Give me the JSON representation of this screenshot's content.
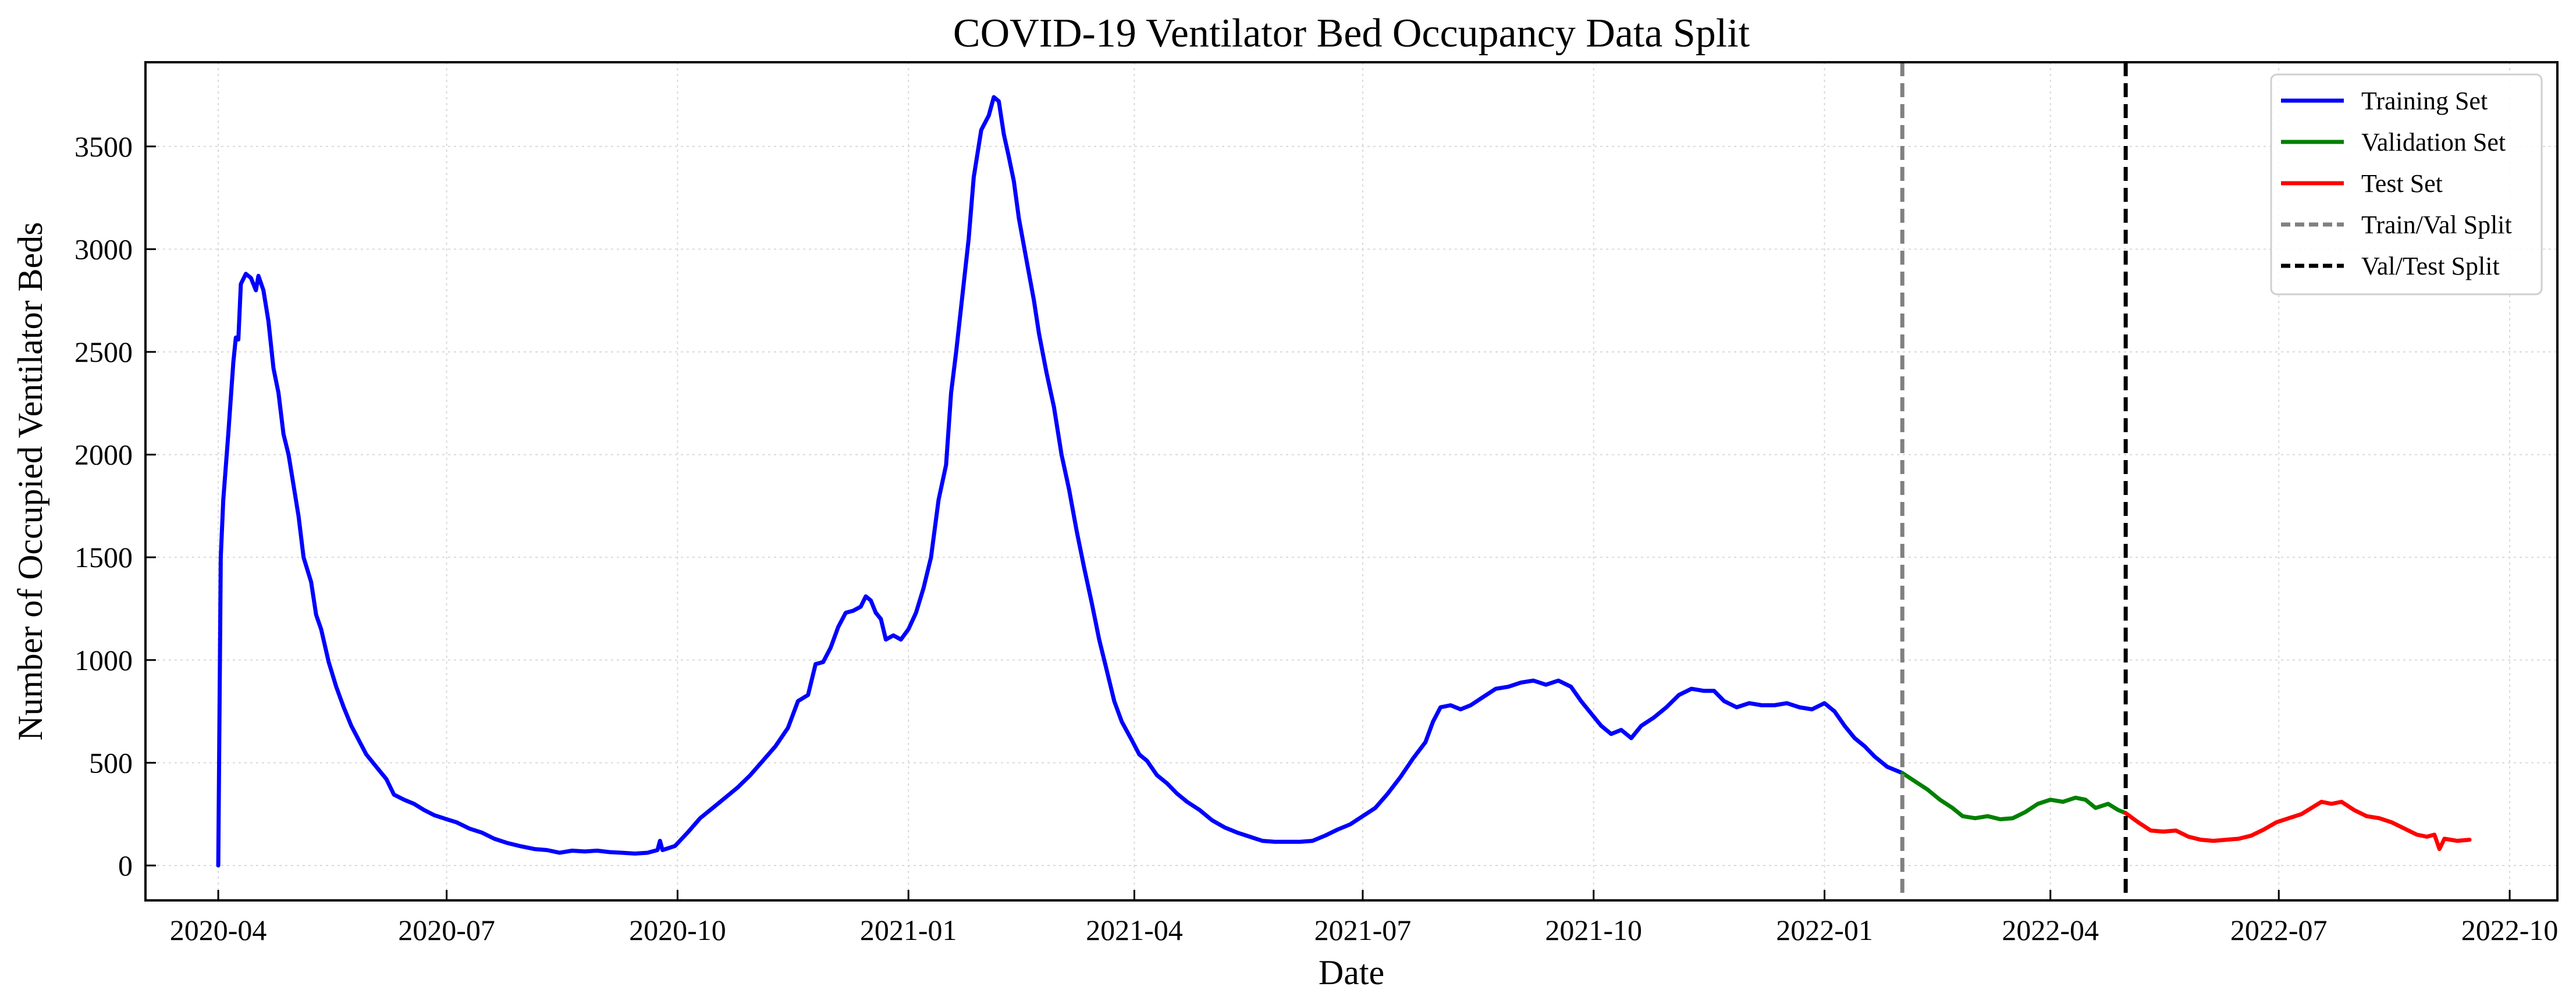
{
  "chart_data": {
    "type": "line",
    "title": "COVID-19 Ventilator Bed Occupancy Data Split",
    "xlabel": "Date",
    "ylabel": "Number of Occupied Ventilator Beds",
    "x_range": [
      "2020-03-03",
      "2022-10-20"
    ],
    "ylim": [
      -170,
      3910
    ],
    "x_ticks": [
      "2020-04",
      "2020-07",
      "2020-10",
      "2021-01",
      "2021-04",
      "2021-07",
      "2021-10",
      "2022-01",
      "2022-04",
      "2022-07",
      "2022-10"
    ],
    "y_ticks": [
      0,
      500,
      1000,
      1500,
      2000,
      2500,
      3000,
      3500
    ],
    "grid": true,
    "legend_position": "top-right",
    "series": [
      {
        "name": "Training Set",
        "color": "#0000ff",
        "points": [
          [
            "2020-04-01",
            0
          ],
          [
            "2020-04-02",
            1500
          ],
          [
            "2020-04-03",
            1780
          ],
          [
            "2020-04-05",
            2100
          ],
          [
            "2020-04-07",
            2450
          ],
          [
            "2020-04-08",
            2570
          ],
          [
            "2020-04-09",
            2560
          ],
          [
            "2020-04-10",
            2830
          ],
          [
            "2020-04-12",
            2880
          ],
          [
            "2020-04-14",
            2860
          ],
          [
            "2020-04-16",
            2800
          ],
          [
            "2020-04-17",
            2870
          ],
          [
            "2020-04-19",
            2800
          ],
          [
            "2020-04-21",
            2650
          ],
          [
            "2020-04-23",
            2420
          ],
          [
            "2020-04-25",
            2300
          ],
          [
            "2020-04-27",
            2100
          ],
          [
            "2020-04-29",
            2000
          ],
          [
            "2020-05-01",
            1850
          ],
          [
            "2020-05-03",
            1700
          ],
          [
            "2020-05-05",
            1500
          ],
          [
            "2020-05-08",
            1380
          ],
          [
            "2020-05-10",
            1220
          ],
          [
            "2020-05-12",
            1150
          ],
          [
            "2020-05-15",
            990
          ],
          [
            "2020-05-18",
            870
          ],
          [
            "2020-05-21",
            770
          ],
          [
            "2020-05-24",
            680
          ],
          [
            "2020-05-27",
            610
          ],
          [
            "2020-05-30",
            540
          ],
          [
            "2020-06-03",
            480
          ],
          [
            "2020-06-07",
            420
          ],
          [
            "2020-06-10",
            345
          ],
          [
            "2020-06-14",
            320
          ],
          [
            "2020-06-18",
            300
          ],
          [
            "2020-06-22",
            270
          ],
          [
            "2020-06-26",
            245
          ],
          [
            "2020-07-01",
            225
          ],
          [
            "2020-07-05",
            210
          ],
          [
            "2020-07-10",
            180
          ],
          [
            "2020-07-15",
            160
          ],
          [
            "2020-07-20",
            130
          ],
          [
            "2020-07-25",
            110
          ],
          [
            "2020-07-30",
            95
          ],
          [
            "2020-08-05",
            80
          ],
          [
            "2020-08-10",
            75
          ],
          [
            "2020-08-15",
            62
          ],
          [
            "2020-08-20",
            72
          ],
          [
            "2020-08-25",
            68
          ],
          [
            "2020-08-30",
            72
          ],
          [
            "2020-09-04",
            65
          ],
          [
            "2020-09-09",
            62
          ],
          [
            "2020-09-14",
            58
          ],
          [
            "2020-09-19",
            62
          ],
          [
            "2020-09-23",
            75
          ],
          [
            "2020-09-24",
            120
          ],
          [
            "2020-09-25",
            75
          ],
          [
            "2020-09-30",
            95
          ],
          [
            "2020-10-05",
            160
          ],
          [
            "2020-10-10",
            230
          ],
          [
            "2020-10-15",
            280
          ],
          [
            "2020-10-20",
            330
          ],
          [
            "2020-10-25",
            380
          ],
          [
            "2020-10-30",
            440
          ],
          [
            "2020-11-04",
            510
          ],
          [
            "2020-11-09",
            580
          ],
          [
            "2020-11-14",
            670
          ],
          [
            "2020-11-18",
            800
          ],
          [
            "2020-11-22",
            830
          ],
          [
            "2020-11-25",
            980
          ],
          [
            "2020-11-28",
            990
          ],
          [
            "2020-12-01",
            1060
          ],
          [
            "2020-12-04",
            1160
          ],
          [
            "2020-12-07",
            1230
          ],
          [
            "2020-12-10",
            1240
          ],
          [
            "2020-12-13",
            1260
          ],
          [
            "2020-12-15",
            1310
          ],
          [
            "2020-12-17",
            1290
          ],
          [
            "2020-12-19",
            1230
          ],
          [
            "2020-12-21",
            1200
          ],
          [
            "2020-12-23",
            1100
          ],
          [
            "2020-12-26",
            1120
          ],
          [
            "2020-12-29",
            1100
          ],
          [
            "2021-01-01",
            1150
          ],
          [
            "2021-01-04",
            1230
          ],
          [
            "2021-01-07",
            1350
          ],
          [
            "2021-01-10",
            1500
          ],
          [
            "2021-01-13",
            1780
          ],
          [
            "2021-01-16",
            1950
          ],
          [
            "2021-01-18",
            2300
          ],
          [
            "2021-01-20",
            2500
          ],
          [
            "2021-01-23",
            2830
          ],
          [
            "2021-01-25",
            3050
          ],
          [
            "2021-01-27",
            3350
          ],
          [
            "2021-01-30",
            3580
          ],
          [
            "2021-02-02",
            3650
          ],
          [
            "2021-02-04",
            3740
          ],
          [
            "2021-02-06",
            3720
          ],
          [
            "2021-02-08",
            3560
          ],
          [
            "2021-02-10",
            3450
          ],
          [
            "2021-02-12",
            3330
          ],
          [
            "2021-02-14",
            3150
          ],
          [
            "2021-02-17",
            2950
          ],
          [
            "2021-02-20",
            2750
          ],
          [
            "2021-02-22",
            2590
          ],
          [
            "2021-02-25",
            2400
          ],
          [
            "2021-02-28",
            2230
          ],
          [
            "2021-03-03",
            2000
          ],
          [
            "2021-03-06",
            1830
          ],
          [
            "2021-03-09",
            1630
          ],
          [
            "2021-03-12",
            1450
          ],
          [
            "2021-03-15",
            1280
          ],
          [
            "2021-03-18",
            1100
          ],
          [
            "2021-03-21",
            950
          ],
          [
            "2021-03-24",
            800
          ],
          [
            "2021-03-27",
            700
          ],
          [
            "2021-03-31",
            610
          ],
          [
            "2021-04-03",
            540
          ],
          [
            "2021-04-06",
            510
          ],
          [
            "2021-04-10",
            440
          ],
          [
            "2021-04-14",
            400
          ],
          [
            "2021-04-18",
            350
          ],
          [
            "2021-04-22",
            310
          ],
          [
            "2021-04-27",
            270
          ],
          [
            "2021-05-02",
            220
          ],
          [
            "2021-05-07",
            185
          ],
          [
            "2021-05-12",
            160
          ],
          [
            "2021-05-17",
            140
          ],
          [
            "2021-05-22",
            120
          ],
          [
            "2021-05-27",
            115
          ],
          [
            "2021-06-01",
            115
          ],
          [
            "2021-06-06",
            115
          ],
          [
            "2021-06-11",
            120
          ],
          [
            "2021-06-16",
            145
          ],
          [
            "2021-06-21",
            175
          ],
          [
            "2021-06-26",
            200
          ],
          [
            "2021-07-01",
            240
          ],
          [
            "2021-07-06",
            280
          ],
          [
            "2021-07-11",
            350
          ],
          [
            "2021-07-16",
            430
          ],
          [
            "2021-07-21",
            520
          ],
          [
            "2021-07-26",
            600
          ],
          [
            "2021-07-29",
            700
          ],
          [
            "2021-08-01",
            770
          ],
          [
            "2021-08-05",
            780
          ],
          [
            "2021-08-09",
            760
          ],
          [
            "2021-08-13",
            780
          ],
          [
            "2021-08-18",
            820
          ],
          [
            "2021-08-23",
            860
          ],
          [
            "2021-08-28",
            870
          ],
          [
            "2021-09-02",
            890
          ],
          [
            "2021-09-07",
            900
          ],
          [
            "2021-09-12",
            880
          ],
          [
            "2021-09-17",
            900
          ],
          [
            "2021-09-22",
            870
          ],
          [
            "2021-09-26",
            800
          ],
          [
            "2021-09-30",
            740
          ],
          [
            "2021-10-04",
            680
          ],
          [
            "2021-10-08",
            640
          ],
          [
            "2021-10-12",
            660
          ],
          [
            "2021-10-16",
            620
          ],
          [
            "2021-10-20",
            680
          ],
          [
            "2021-10-25",
            720
          ],
          [
            "2021-10-30",
            770
          ],
          [
            "2021-11-04",
            830
          ],
          [
            "2021-11-09",
            860
          ],
          [
            "2021-11-14",
            850
          ],
          [
            "2021-11-18",
            850
          ],
          [
            "2021-11-22",
            800
          ],
          [
            "2021-11-27",
            770
          ],
          [
            "2021-12-02",
            790
          ],
          [
            "2021-12-07",
            780
          ],
          [
            "2021-12-12",
            780
          ],
          [
            "2021-12-17",
            790
          ],
          [
            "2021-12-22",
            770
          ],
          [
            "2021-12-27",
            760
          ],
          [
            "2022-01-01",
            790
          ],
          [
            "2022-01-05",
            750
          ],
          [
            "2022-01-09",
            680
          ],
          [
            "2022-01-13",
            620
          ],
          [
            "2022-01-17",
            580
          ],
          [
            "2022-01-21",
            530
          ],
          [
            "2022-01-26",
            480
          ],
          [
            "2022-02-01",
            450
          ]
        ]
      },
      {
        "name": "Validation Set",
        "color": "#008000",
        "points": [
          [
            "2022-02-01",
            450
          ],
          [
            "2022-02-06",
            410
          ],
          [
            "2022-02-11",
            370
          ],
          [
            "2022-02-16",
            320
          ],
          [
            "2022-02-21",
            280
          ],
          [
            "2022-02-25",
            240
          ],
          [
            "2022-03-02",
            230
          ],
          [
            "2022-03-07",
            240
          ],
          [
            "2022-03-12",
            225
          ],
          [
            "2022-03-17",
            230
          ],
          [
            "2022-03-22",
            260
          ],
          [
            "2022-03-27",
            300
          ],
          [
            "2022-04-01",
            320
          ],
          [
            "2022-04-06",
            310
          ],
          [
            "2022-04-11",
            330
          ],
          [
            "2022-04-15",
            320
          ],
          [
            "2022-04-19",
            280
          ],
          [
            "2022-04-24",
            300
          ],
          [
            "2022-04-28",
            270
          ],
          [
            "2022-05-01",
            255
          ]
        ]
      },
      {
        "name": "Test Set",
        "color": "#ff0000",
        "points": [
          [
            "2022-05-01",
            255
          ],
          [
            "2022-05-06",
            210
          ],
          [
            "2022-05-11",
            170
          ],
          [
            "2022-05-16",
            165
          ],
          [
            "2022-05-21",
            170
          ],
          [
            "2022-05-26",
            140
          ],
          [
            "2022-05-31",
            125
          ],
          [
            "2022-06-05",
            120
          ],
          [
            "2022-06-10",
            125
          ],
          [
            "2022-06-15",
            130
          ],
          [
            "2022-06-20",
            145
          ],
          [
            "2022-06-25",
            175
          ],
          [
            "2022-06-30",
            210
          ],
          [
            "2022-07-05",
            230
          ],
          [
            "2022-07-10",
            250
          ],
          [
            "2022-07-14",
            280
          ],
          [
            "2022-07-18",
            310
          ],
          [
            "2022-07-22",
            300
          ],
          [
            "2022-07-26",
            310
          ],
          [
            "2022-07-31",
            270
          ],
          [
            "2022-08-05",
            240
          ],
          [
            "2022-08-10",
            230
          ],
          [
            "2022-08-15",
            210
          ],
          [
            "2022-08-20",
            180
          ],
          [
            "2022-08-25",
            150
          ],
          [
            "2022-08-29",
            140
          ],
          [
            "2022-09-01",
            150
          ],
          [
            "2022-09-03",
            80
          ],
          [
            "2022-09-05",
            130
          ],
          [
            "2022-09-10",
            120
          ],
          [
            "2022-09-15",
            125
          ]
        ]
      }
    ],
    "vlines": [
      {
        "name": "Train/Val Split",
        "x": "2022-02-01",
        "color": "#808080",
        "style": "dashed"
      },
      {
        "name": "Val/Test Split",
        "x": "2022-05-01",
        "color": "#000000",
        "style": "dashed"
      }
    ]
  }
}
